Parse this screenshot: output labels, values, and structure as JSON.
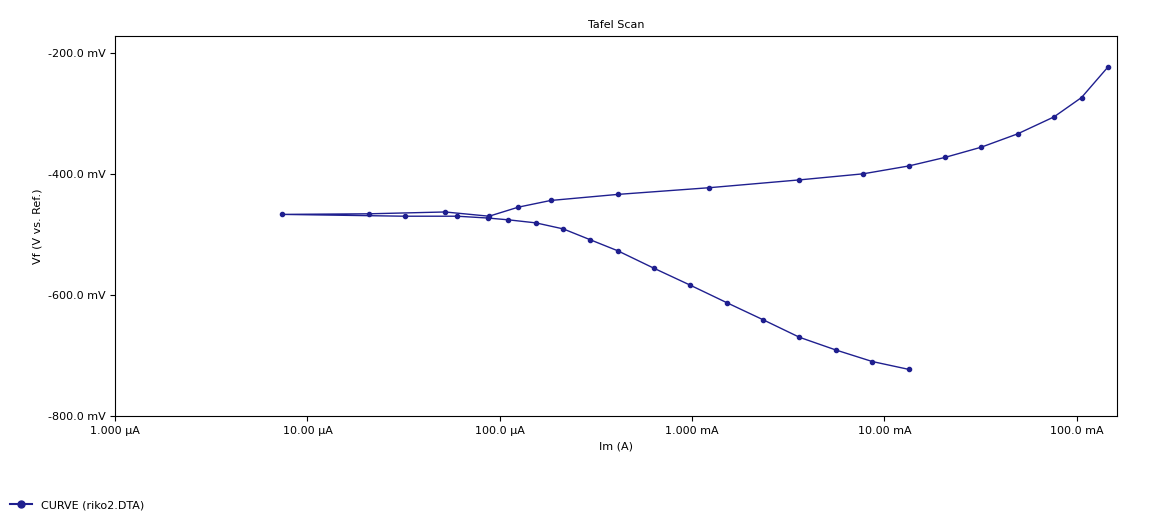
{
  "chart_data": {
    "type": "line",
    "title": "Tafel Scan",
    "x_label": "Im (A)",
    "y_label": "Vf (V vs. Ref.)",
    "log": "x",
    "grid": false,
    "legend": "lower left",
    "xlim": [
      1e-06,
      0.163
    ],
    "ylim": [
      -800,
      -173
    ],
    "xticks": [
      {
        "value": 1e-06,
        "label": "1.000 µA"
      },
      {
        "value": 1e-05,
        "label": "10.00 µA"
      },
      {
        "value": 0.0001,
        "label": "100.0 µA"
      },
      {
        "value": 0.001,
        "label": "1.000 mA"
      },
      {
        "value": 0.01,
        "label": "10.00 mA"
      },
      {
        "value": 0.1,
        "label": "100.0 mA"
      }
    ],
    "yticks": [
      {
        "value": -200,
        "label": "-200.0 mV"
      },
      {
        "value": -400,
        "label": "-400.0 mV"
      },
      {
        "value": -600,
        "label": "-600.0 mV"
      },
      {
        "value": -800,
        "label": "-800.0 mV"
      }
    ],
    "series": [
      {
        "name": "CURVE (riko2.DTA)",
        "color": "#1f1f8f",
        "marker": "o",
        "line_style": "solid",
        "x": [
          0.0134,
          0.00865,
          0.0056,
          0.00362,
          0.00234,
          0.00152,
          0.00098,
          0.000634,
          0.00041,
          0.000296,
          0.000214,
          0.000154,
          0.000111,
          8.66e-05,
          6e-05,
          3.2e-05,
          7.4e-06,
          2.1e-05,
          5.2e-05,
          8.8e-05,
          0.000125,
          0.000184,
          0.00041,
          0.00122,
          0.00362,
          0.00775,
          0.0134,
          0.0206,
          0.0319,
          0.0493,
          0.0762,
          0.106,
          0.146
        ],
        "values": [
          -723,
          -710,
          -691,
          -670,
          -641,
          -613,
          -584,
          -556,
          -527,
          -509,
          -491,
          -481,
          -476,
          -473,
          -470,
          -470,
          -467,
          -466,
          -463,
          -470,
          -455,
          -444,
          -434,
          -423,
          -410,
          -400,
          -387,
          -373,
          -356,
          -334,
          -306,
          -274,
          -223
        ]
      }
    ]
  }
}
